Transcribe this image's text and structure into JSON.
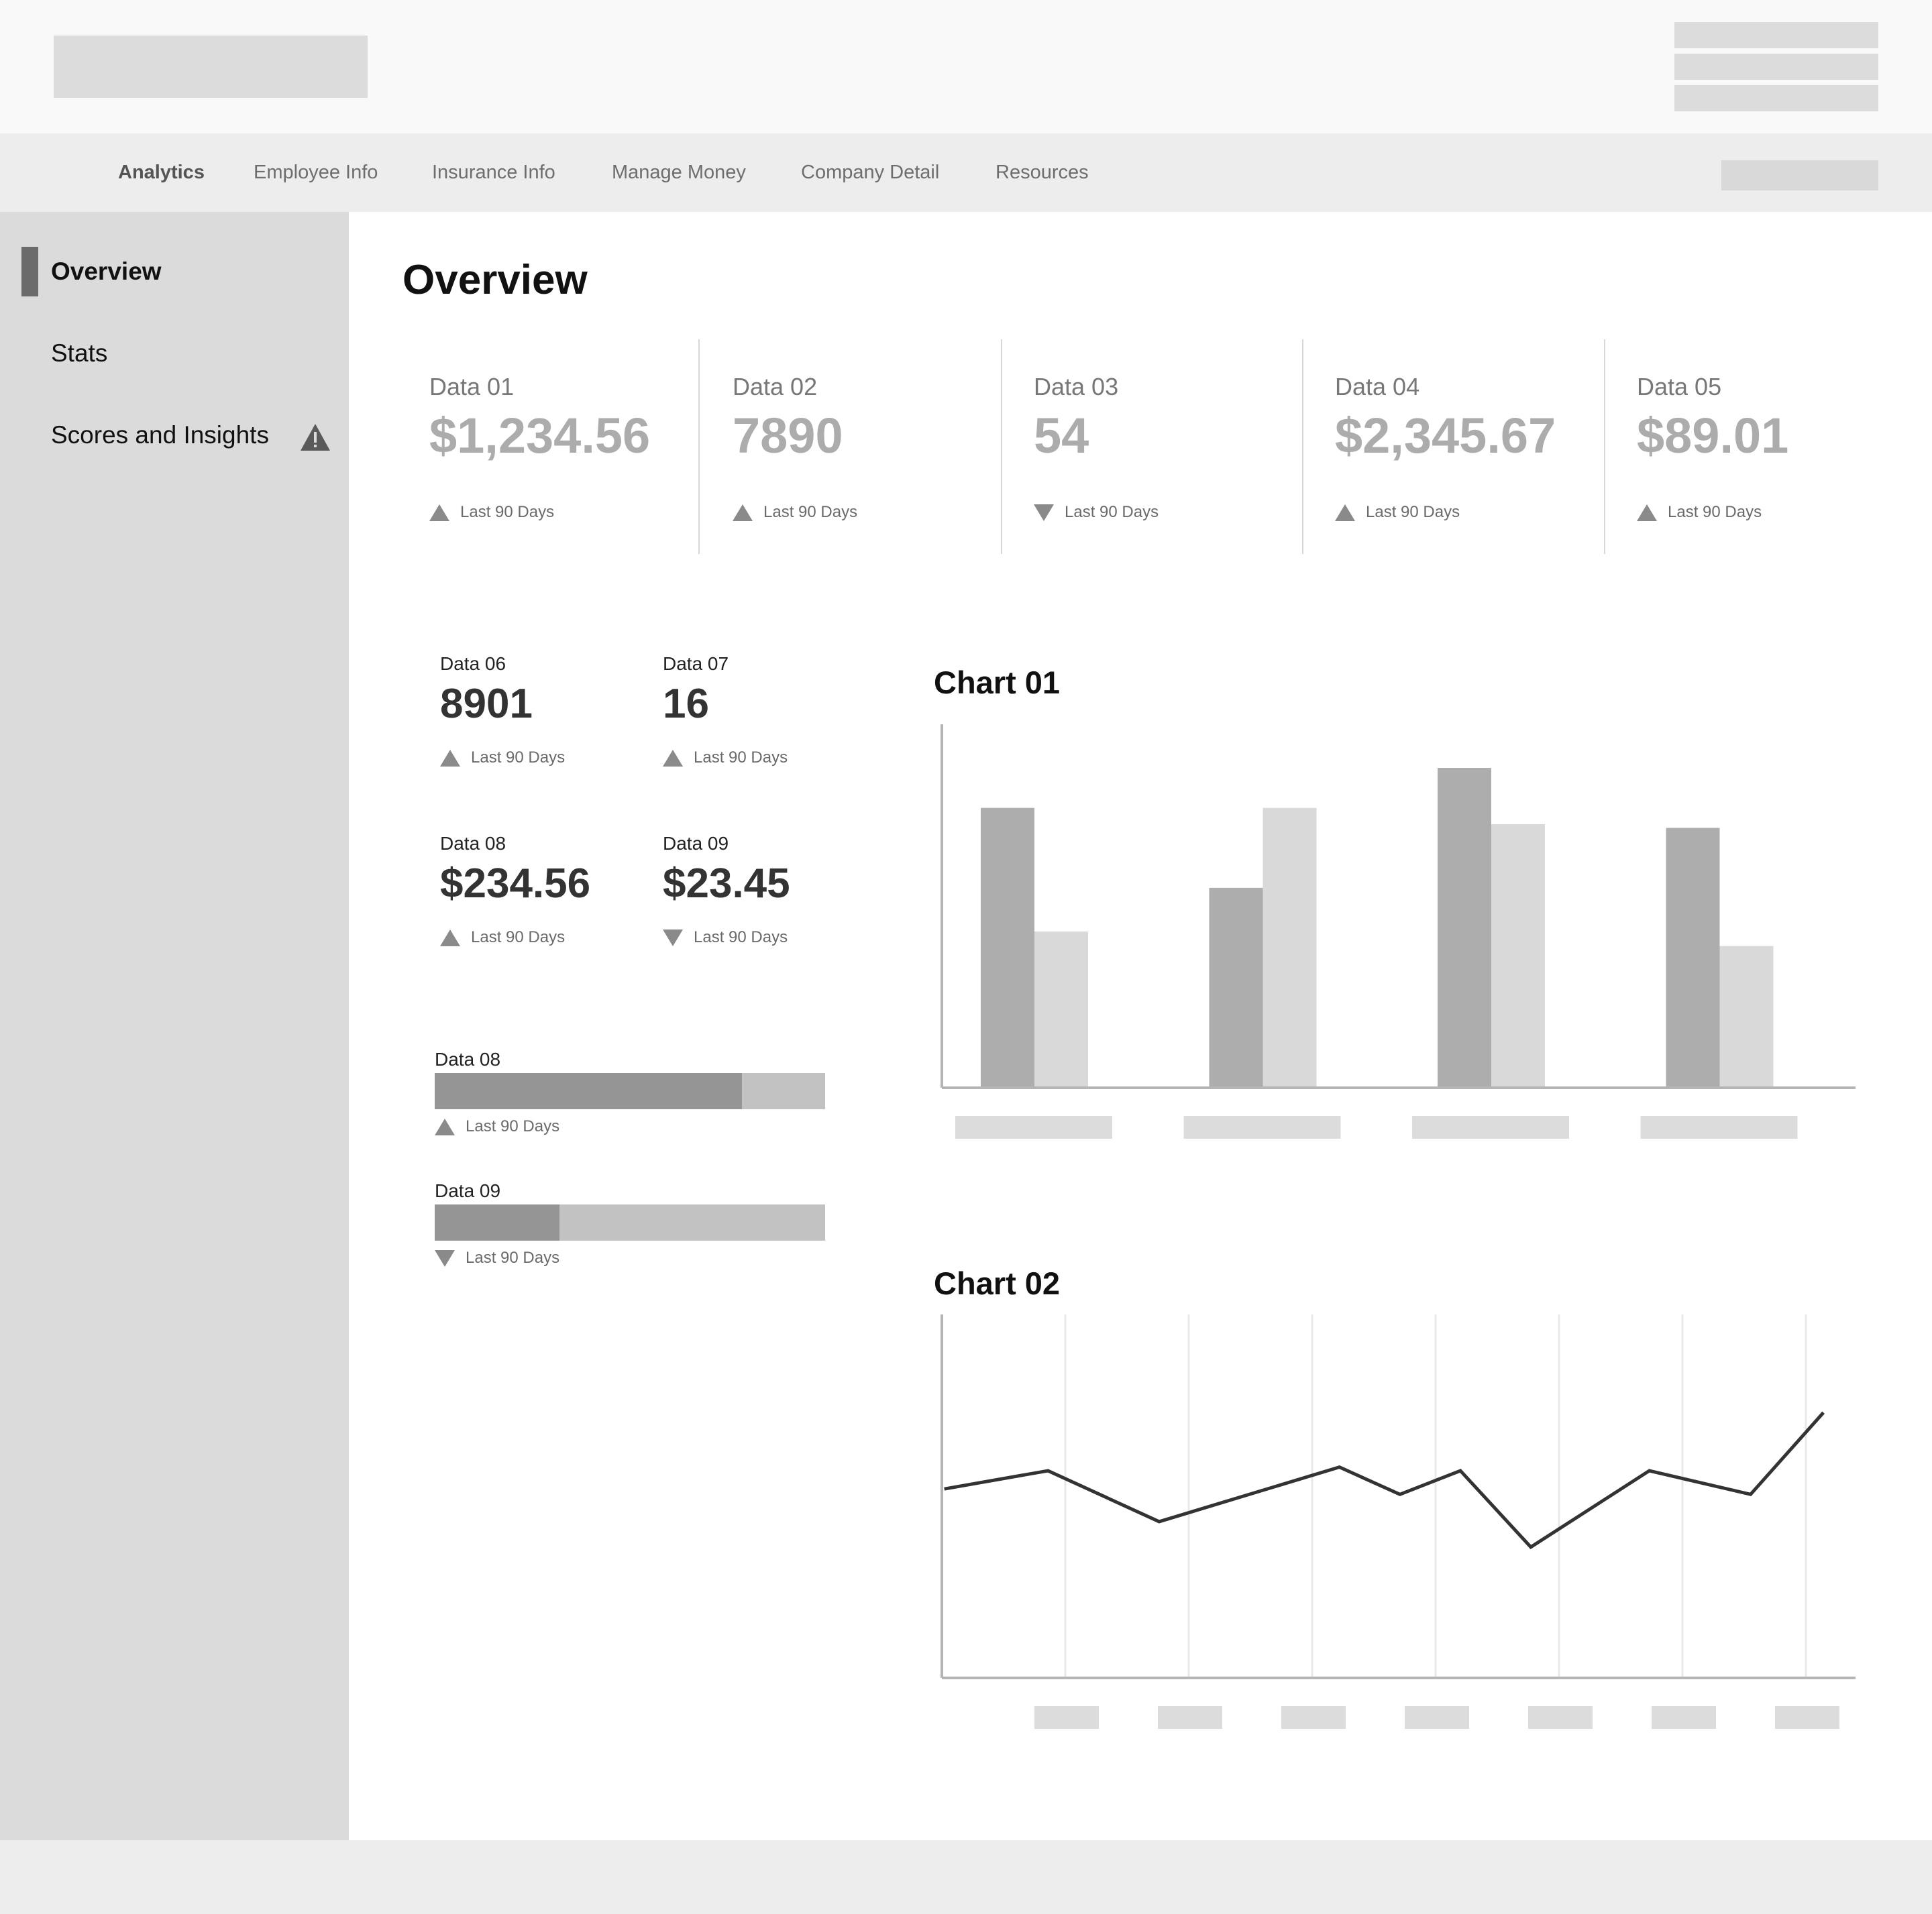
{
  "top_nav": {
    "tabs": [
      {
        "label": "Analytics",
        "active": true
      },
      {
        "label": "Employee Info",
        "active": false
      },
      {
        "label": "Insurance Info",
        "active": false
      },
      {
        "label": "Manage Money",
        "active": false
      },
      {
        "label": "Company Detail",
        "active": false
      },
      {
        "label": "Resources",
        "active": false
      }
    ]
  },
  "sidebar": {
    "items": [
      {
        "label": "Overview",
        "active": true
      },
      {
        "label": "Stats",
        "active": false
      },
      {
        "label": "Scores and Insights",
        "active": false,
        "icon": "warning-icon"
      }
    ]
  },
  "main": {
    "title": "Overview",
    "kpis": [
      {
        "label": "Data 01",
        "value": "$1,234.56",
        "trend": "up",
        "period": "Last 90 Days"
      },
      {
        "label": "Data 02",
        "value": "7890",
        "trend": "up",
        "period": "Last 90 Days"
      },
      {
        "label": "Data 03",
        "value": "54",
        "trend": "down",
        "period": "Last 90 Days"
      },
      {
        "label": "Data 04",
        "value": "$2,345.67",
        "trend": "up",
        "period": "Last 90 Days"
      },
      {
        "label": "Data 05",
        "value": "$89.01",
        "trend": "up",
        "period": "Last 90 Days"
      }
    ],
    "stats": [
      {
        "label": "Data 06",
        "value": "8901",
        "trend": "up",
        "period": "Last 90 Days"
      },
      {
        "label": "Data 07",
        "value": "16",
        "trend": "up",
        "period": "Last 90 Days"
      },
      {
        "label": "Data 08",
        "value": "$234.56",
        "trend": "up",
        "period": "Last 90 Days"
      },
      {
        "label": "Data 09",
        "value": "$23.45",
        "trend": "down",
        "period": "Last 90 Days"
      }
    ],
    "progress": [
      {
        "label": "Data 08",
        "fraction": 0.787,
        "trend": "up",
        "period": "Last 90 Days"
      },
      {
        "label": "Data 09",
        "fraction": 0.32,
        "trend": "down",
        "period": "Last 90 Days"
      }
    ]
  },
  "colors": {
    "bar_series_1": "#adadad",
    "bar_series_2": "#d9d9d9",
    "line": "#333333",
    "placeholder": "#dcdcdc"
  },
  "chart_data": [
    {
      "type": "bar",
      "title": "Chart 01",
      "categories": [
        "",
        "",
        "",
        ""
      ],
      "series": [
        {
          "values": [
            77,
            55,
            88,
            71.5
          ]
        },
        {
          "values": [
            43,
            77,
            72.5,
            39
          ]
        }
      ],
      "ylim": [
        0,
        100
      ],
      "grid": false,
      "legend": "none"
    },
    {
      "type": "line",
      "title": "Chart 02",
      "x": [
        0.2,
        8.6,
        17.6,
        32.2,
        37.1,
        42.0,
        47.7,
        57.3,
        65.5,
        71.4
      ],
      "series": [
        {
          "values": [
            52,
            57,
            43,
            58,
            50.5,
            57,
            36,
            57,
            50.5,
            73
          ]
        }
      ],
      "xlim": [
        0,
        74
      ],
      "ylim": [
        0,
        100
      ],
      "grid": "vertical",
      "legend": "none"
    }
  ]
}
